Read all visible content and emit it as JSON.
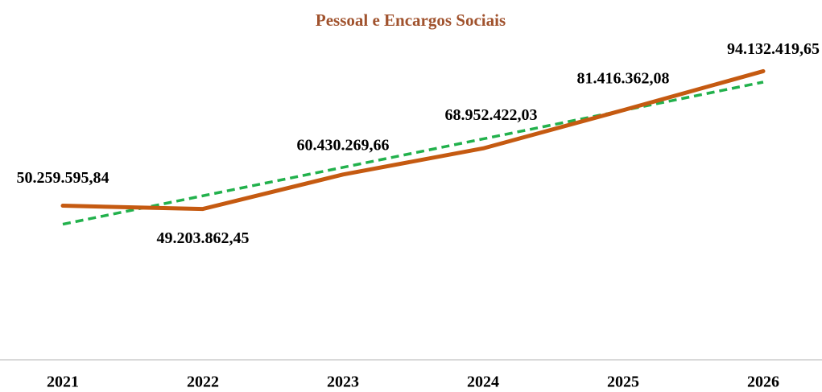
{
  "chart_data": {
    "type": "line",
    "title": "Pessoal e Encargos Sociais",
    "categories": [
      "2021",
      "2022",
      "2023",
      "2024",
      "2025",
      "2026"
    ],
    "series": [
      {
        "color": "#c55a11",
        "values": [
          50259595.84,
          49203862.45,
          60430269.66,
          68952422.03,
          81416362.08,
          94132419.65
        ],
        "value_labels": [
          "50.259.595,84",
          "49.203.862,45",
          "60.430.269,66",
          "68.952.422,03",
          "81.416.362,08",
          "94.132.419,65"
        ]
      }
    ],
    "trendline": {
      "color": "#22b14c",
      "values": [
        44220000,
        53490000,
        62760000,
        72040000,
        81310000,
        90580000
      ]
    },
    "ylim": [
      0,
      110000000
    ]
  }
}
